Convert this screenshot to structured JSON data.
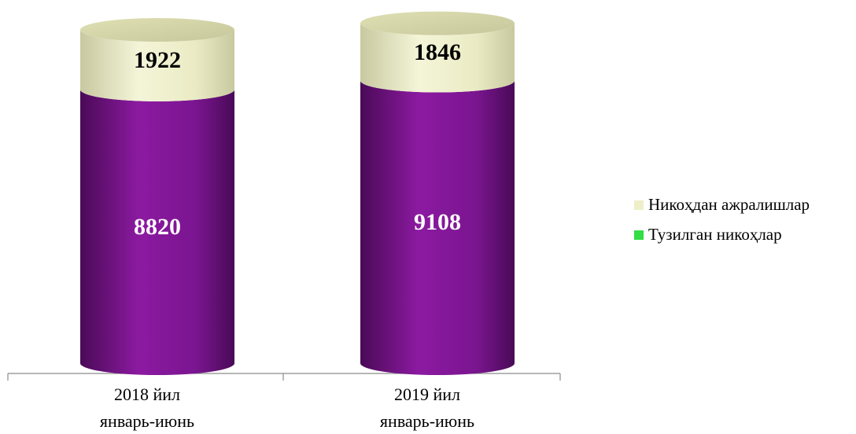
{
  "chart_data": {
    "type": "bar",
    "stacked": true,
    "style": "3d-cylinder",
    "categories": [
      [
        "2018 йил",
        "январь-июнь"
      ],
      [
        "2019 йил",
        "январь-июнь"
      ]
    ],
    "series": [
      {
        "name": "Тузилган никоҳлар",
        "values": [
          8820,
          9108
        ],
        "color": "#7b138f",
        "legend_color": "#33dd44",
        "label_color": "#ffffff"
      },
      {
        "name": "Никоҳдан ажралишлар",
        "values": [
          1922,
          1846
        ],
        "color": "#eeefc8",
        "legend_color": "#eeefc8",
        "label_color": "#000000"
      }
    ],
    "legend_order": [
      1,
      0
    ],
    "ylim": [
      0,
      10742
    ],
    "grid": false,
    "legend_position": "right"
  }
}
